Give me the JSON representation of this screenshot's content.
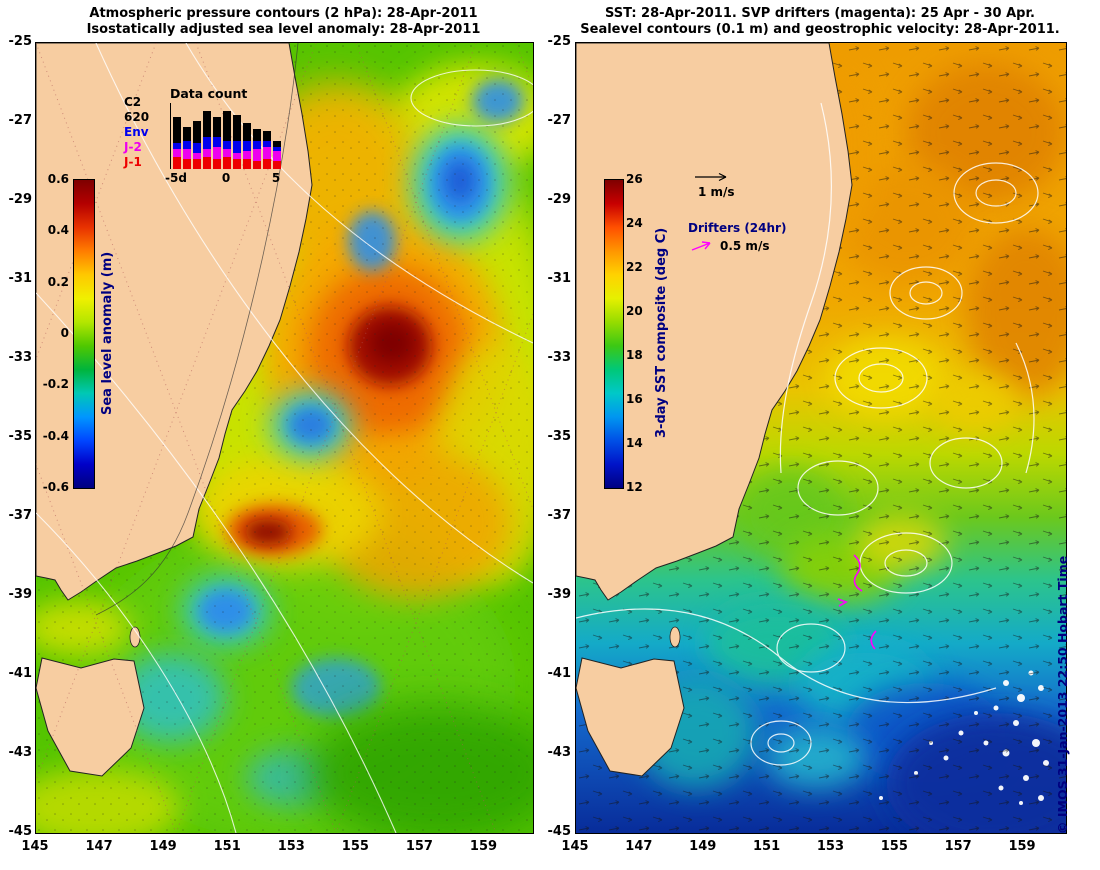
{
  "left_panel": {
    "title_line1": "Atmospheric pressure contours (2 hPa): 28-Apr-2011",
    "title_line2": "Isostatically adjusted sea level anomaly: 28-Apr-2011",
    "colorbar": {
      "label": "Sea level anomaly (m)",
      "ticks": [
        "0.6",
        "0.4",
        "0.2",
        "0",
        "-0.2",
        "-0.4",
        "-0.6"
      ],
      "stops": [
        "#7f0000",
        "#b40000",
        "#e83200",
        "#ff7d00",
        "#ffc800",
        "#f0f000",
        "#b4e600",
        "#50c800",
        "#00b43c",
        "#00c8b4",
        "#0096ff",
        "#0046ff",
        "#0000c8",
        "#00007f"
      ]
    },
    "inset": {
      "title": "Data count",
      "count_label": "620",
      "legend": [
        {
          "label": "C2",
          "color": "#000000"
        },
        {
          "label": "Env",
          "color": "#0000ee"
        },
        {
          "label": "J-2",
          "color": "#ee00ee"
        },
        {
          "label": "J-1",
          "color": "#ee0000"
        }
      ],
      "x_ticks": [
        "-5d",
        "0",
        "5"
      ],
      "bars": [
        [
          26,
          6,
          8,
          12
        ],
        [
          14,
          8,
          10,
          10
        ],
        [
          22,
          10,
          6,
          10
        ],
        [
          26,
          12,
          8,
          12
        ],
        [
          20,
          10,
          12,
          10
        ],
        [
          30,
          8,
          8,
          12
        ],
        [
          26,
          12,
          6,
          10
        ],
        [
          18,
          10,
          8,
          10
        ],
        [
          12,
          8,
          12,
          8
        ],
        [
          10,
          6,
          12,
          10
        ],
        [
          6,
          4,
          10,
          8
        ]
      ]
    }
  },
  "right_panel": {
    "title_line1": "SST: 28-Apr-2011. SVP drifters (magenta): 25 Apr - 30 Apr.",
    "title_line2": "Sealevel contours (0.1 m) and geostrophic velocity: 28-Apr-2011.",
    "colorbar": {
      "label": "3-day SST composite (deg C)",
      "ticks": [
        "26",
        "24",
        "22",
        "20",
        "18",
        "16",
        "14",
        "12"
      ],
      "stops": [
        "#7f0000",
        "#c80000",
        "#ff5000",
        "#ff9600",
        "#ffd200",
        "#e6f000",
        "#96dc00",
        "#3cc814",
        "#00c878",
        "#00c8c8",
        "#0096f0",
        "#0050e6",
        "#0014c8",
        "#000082"
      ]
    },
    "velocity_legend": {
      "label": "1 m/s"
    },
    "drifters_legend": {
      "title": "Drifters (24hr)",
      "label": "0.5 m/s",
      "color": "#ff00ff"
    },
    "copyright": "© IMOS 31-Jan-2013 22:50 Hobart Time"
  },
  "axes": {
    "lat_ticks": [
      "-25",
      "-27",
      "-29",
      "-31",
      "-33",
      "-35",
      "-37",
      "-39",
      "-41",
      "-43",
      "-45"
    ],
    "lon_ticks": [
      "145",
      "147",
      "149",
      "151",
      "153",
      "155",
      "157",
      "159"
    ]
  },
  "colors": {
    "land": "#f7cda1",
    "navy_label": "#000080",
    "magenta": "#ff00ff"
  },
  "chart_data": {
    "type": "bar",
    "title": "Data count",
    "x": [
      -5,
      -4,
      -3,
      -2,
      -1,
      0,
      1,
      2,
      3,
      4,
      5
    ],
    "x_tick_labels": [
      "-5d",
      "0",
      "5"
    ],
    "stacked": true,
    "series": [
      {
        "name": "C2",
        "values": [
          26,
          14,
          22,
          26,
          20,
          30,
          26,
          18,
          12,
          10,
          6
        ]
      },
      {
        "name": "Env",
        "values": [
          6,
          8,
          10,
          12,
          10,
          8,
          12,
          10,
          8,
          6,
          4
        ]
      },
      {
        "name": "J-2",
        "values": [
          8,
          10,
          6,
          8,
          12,
          8,
          6,
          8,
          12,
          12,
          10
        ]
      },
      {
        "name": "J-1",
        "values": [
          12,
          10,
          10,
          12,
          10,
          12,
          10,
          10,
          8,
          10,
          8
        ]
      }
    ],
    "annotation": "620",
    "legend_position": "left"
  }
}
